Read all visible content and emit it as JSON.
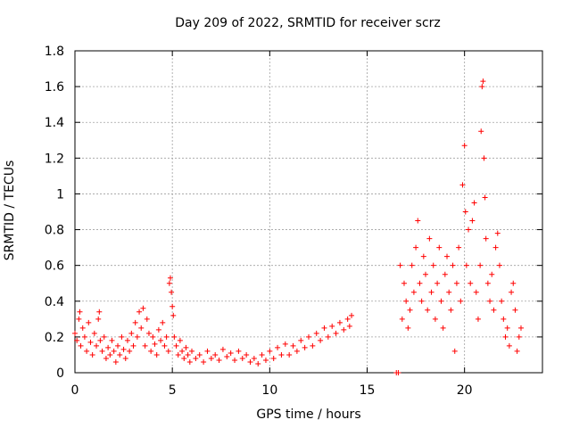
{
  "chart_data": {
    "type": "scatter",
    "title": "Day 209 of 2022, SRMTID for receiver scrz",
    "xlabel": "GPS time / hours",
    "ylabel": "SRMTID / TECUs",
    "xlim": [
      0,
      24
    ],
    "ylim": [
      0,
      1.8
    ],
    "xticks": [
      0,
      5,
      10,
      15,
      20
    ],
    "xtick_labels": [
      "0",
      "5",
      "10",
      "15",
      "20"
    ],
    "yticks": [
      0,
      0.2,
      0.4,
      0.6,
      0.8,
      1,
      1.2,
      1.4,
      1.6,
      1.8
    ],
    "ytick_labels": [
      "0",
      "0.2",
      "0.4",
      "0.6",
      "0.8",
      "1",
      "1.2",
      "1.4",
      "1.6",
      "1.8"
    ],
    "grid": true,
    "marker": "plus",
    "color": "#ff0000",
    "series": [
      {
        "name": "SRMTID",
        "points": [
          [
            0.0,
            0.22
          ],
          [
            0.1,
            0.18
          ],
          [
            0.2,
            0.3
          ],
          [
            0.25,
            0.34
          ],
          [
            0.3,
            0.15
          ],
          [
            0.4,
            0.25
          ],
          [
            0.5,
            0.2
          ],
          [
            0.6,
            0.12
          ],
          [
            0.7,
            0.28
          ],
          [
            0.8,
            0.17
          ],
          [
            0.9,
            0.1
          ],
          [
            1.0,
            0.22
          ],
          [
            1.1,
            0.15
          ],
          [
            1.2,
            0.3
          ],
          [
            1.25,
            0.34
          ],
          [
            1.3,
            0.18
          ],
          [
            1.4,
            0.12
          ],
          [
            1.5,
            0.2
          ],
          [
            1.6,
            0.08
          ],
          [
            1.7,
            0.14
          ],
          [
            1.8,
            0.1
          ],
          [
            1.9,
            0.18
          ],
          [
            2.0,
            0.12
          ],
          [
            2.1,
            0.06
          ],
          [
            2.2,
            0.15
          ],
          [
            2.3,
            0.1
          ],
          [
            2.4,
            0.2
          ],
          [
            2.5,
            0.13
          ],
          [
            2.6,
            0.08
          ],
          [
            2.7,
            0.18
          ],
          [
            2.8,
            0.12
          ],
          [
            2.9,
            0.22
          ],
          [
            3.0,
            0.15
          ],
          [
            3.1,
            0.28
          ],
          [
            3.2,
            0.2
          ],
          [
            3.3,
            0.34
          ],
          [
            3.4,
            0.25
          ],
          [
            3.5,
            0.36
          ],
          [
            3.6,
            0.15
          ],
          [
            3.7,
            0.3
          ],
          [
            3.8,
            0.22
          ],
          [
            3.9,
            0.12
          ],
          [
            4.0,
            0.2
          ],
          [
            4.1,
            0.16
          ],
          [
            4.2,
            0.1
          ],
          [
            4.3,
            0.24
          ],
          [
            4.4,
            0.18
          ],
          [
            4.5,
            0.28
          ],
          [
            4.6,
            0.15
          ],
          [
            4.7,
            0.2
          ],
          [
            4.8,
            0.12
          ],
          [
            4.85,
            0.5
          ],
          [
            4.9,
            0.53
          ],
          [
            4.95,
            0.45
          ],
          [
            5.0,
            0.37
          ],
          [
            5.05,
            0.32
          ],
          [
            5.1,
            0.2
          ],
          [
            5.2,
            0.15
          ],
          [
            5.3,
            0.1
          ],
          [
            5.4,
            0.18
          ],
          [
            5.5,
            0.12
          ],
          [
            5.6,
            0.08
          ],
          [
            5.7,
            0.14
          ],
          [
            5.8,
            0.1
          ],
          [
            5.9,
            0.06
          ],
          [
            6.0,
            0.12
          ],
          [
            6.2,
            0.08
          ],
          [
            6.4,
            0.1
          ],
          [
            6.6,
            0.06
          ],
          [
            6.8,
            0.12
          ],
          [
            7.0,
            0.08
          ],
          [
            7.2,
            0.1
          ],
          [
            7.4,
            0.07
          ],
          [
            7.6,
            0.13
          ],
          [
            7.8,
            0.09
          ],
          [
            8.0,
            0.11
          ],
          [
            8.2,
            0.07
          ],
          [
            8.4,
            0.12
          ],
          [
            8.6,
            0.08
          ],
          [
            8.8,
            0.1
          ],
          [
            9.0,
            0.06
          ],
          [
            9.2,
            0.08
          ],
          [
            9.4,
            0.05
          ],
          [
            9.6,
            0.1
          ],
          [
            9.8,
            0.07
          ],
          [
            10.0,
            0.12
          ],
          [
            10.2,
            0.08
          ],
          [
            10.4,
            0.14
          ],
          [
            10.6,
            0.1
          ],
          [
            10.8,
            0.16
          ],
          [
            11.0,
            0.1
          ],
          [
            11.2,
            0.15
          ],
          [
            11.4,
            0.12
          ],
          [
            11.6,
            0.18
          ],
          [
            11.8,
            0.14
          ],
          [
            12.0,
            0.2
          ],
          [
            12.2,
            0.15
          ],
          [
            12.4,
            0.22
          ],
          [
            12.6,
            0.18
          ],
          [
            12.8,
            0.25
          ],
          [
            13.0,
            0.2
          ],
          [
            13.2,
            0.26
          ],
          [
            13.4,
            0.22
          ],
          [
            13.6,
            0.28
          ],
          [
            13.8,
            0.24
          ],
          [
            14.0,
            0.3
          ],
          [
            14.1,
            0.26
          ],
          [
            14.2,
            0.32
          ],
          [
            16.5,
            0.0
          ],
          [
            16.6,
            0.0
          ],
          [
            16.7,
            0.6
          ],
          [
            16.8,
            0.3
          ],
          [
            16.9,
            0.5
          ],
          [
            17.0,
            0.4
          ],
          [
            17.1,
            0.25
          ],
          [
            17.2,
            0.35
          ],
          [
            17.3,
            0.6
          ],
          [
            17.4,
            0.45
          ],
          [
            17.5,
            0.7
          ],
          [
            17.6,
            0.85
          ],
          [
            17.7,
            0.5
          ],
          [
            17.8,
            0.4
          ],
          [
            17.9,
            0.65
          ],
          [
            18.0,
            0.55
          ],
          [
            18.1,
            0.35
          ],
          [
            18.2,
            0.75
          ],
          [
            18.3,
            0.45
          ],
          [
            18.4,
            0.6
          ],
          [
            18.5,
            0.3
          ],
          [
            18.6,
            0.5
          ],
          [
            18.7,
            0.7
          ],
          [
            18.8,
            0.4
          ],
          [
            18.9,
            0.25
          ],
          [
            19.0,
            0.55
          ],
          [
            19.1,
            0.65
          ],
          [
            19.2,
            0.45
          ],
          [
            19.3,
            0.35
          ],
          [
            19.4,
            0.6
          ],
          [
            19.5,
            0.12
          ],
          [
            19.6,
            0.5
          ],
          [
            19.7,
            0.7
          ],
          [
            19.8,
            0.4
          ],
          [
            19.9,
            1.05
          ],
          [
            20.0,
            1.27
          ],
          [
            20.05,
            0.9
          ],
          [
            20.1,
            0.6
          ],
          [
            20.2,
            0.8
          ],
          [
            20.3,
            0.5
          ],
          [
            20.4,
            0.85
          ],
          [
            20.5,
            0.95
          ],
          [
            20.6,
            0.45
          ],
          [
            20.7,
            0.3
          ],
          [
            20.8,
            0.6
          ],
          [
            20.85,
            1.35
          ],
          [
            20.9,
            1.6
          ],
          [
            20.95,
            1.63
          ],
          [
            21.0,
            1.2
          ],
          [
            21.05,
            0.98
          ],
          [
            21.1,
            0.75
          ],
          [
            21.2,
            0.5
          ],
          [
            21.3,
            0.4
          ],
          [
            21.4,
            0.55
          ],
          [
            21.5,
            0.35
          ],
          [
            21.6,
            0.7
          ],
          [
            21.7,
            0.78
          ],
          [
            21.8,
            0.6
          ],
          [
            21.9,
            0.4
          ],
          [
            22.0,
            0.3
          ],
          [
            22.1,
            0.2
          ],
          [
            22.2,
            0.25
          ],
          [
            22.3,
            0.15
          ],
          [
            22.4,
            0.45
          ],
          [
            22.5,
            0.5
          ],
          [
            22.6,
            0.35
          ],
          [
            22.7,
            0.12
          ],
          [
            22.8,
            0.2
          ],
          [
            22.9,
            0.25
          ]
        ]
      }
    ]
  }
}
